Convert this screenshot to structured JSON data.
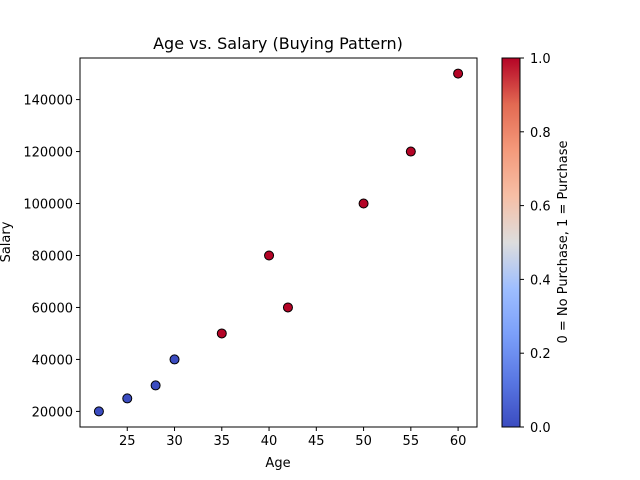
{
  "chart_data": {
    "type": "scatter",
    "title": "Age vs. Salary (Buying Pattern)",
    "xlabel": "Age",
    "ylabel": "Salary",
    "xlim": [
      20.0,
      62.0
    ],
    "ylim": [
      14000,
      156000
    ],
    "x_ticks": [
      25,
      30,
      35,
      40,
      45,
      50,
      55,
      60
    ],
    "y_ticks": [
      20000,
      40000,
      60000,
      80000,
      100000,
      120000,
      140000
    ],
    "points": [
      {
        "x": 22,
        "y": 20000,
        "purchased": 0
      },
      {
        "x": 25,
        "y": 25000,
        "purchased": 0
      },
      {
        "x": 28,
        "y": 30000,
        "purchased": 0
      },
      {
        "x": 30,
        "y": 40000,
        "purchased": 0
      },
      {
        "x": 35,
        "y": 50000,
        "purchased": 1
      },
      {
        "x": 40,
        "y": 80000,
        "purchased": 1
      },
      {
        "x": 42,
        "y": 60000,
        "purchased": 1
      },
      {
        "x": 50,
        "y": 100000,
        "purchased": 1
      },
      {
        "x": 55,
        "y": 120000,
        "purchased": 1
      },
      {
        "x": 60,
        "y": 150000,
        "purchased": 1
      }
    ],
    "colorbar": {
      "label": "0 = No Purchase, 1 = Purchase",
      "range": [
        0.0,
        1.0
      ],
      "ticks": [
        "0.0",
        "0.2",
        "0.4",
        "0.6",
        "0.8",
        "1.0"
      ],
      "colormap": "coolwarm",
      "color_low": "#3b4cc0",
      "color_mid": "#dddddd",
      "color_high": "#b40426"
    },
    "grid": false,
    "marker_edge_color": "#000000"
  }
}
